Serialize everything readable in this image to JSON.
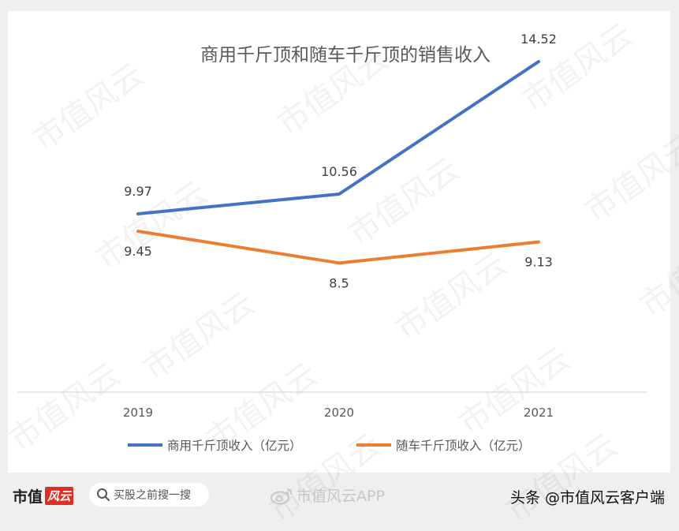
{
  "chart_data": {
    "type": "line",
    "title": "商用千斤顶和随车千斤顶的销售收入",
    "categories": [
      "2019",
      "2020",
      "2021"
    ],
    "series": [
      {
        "name": "商用千斤顶收入（亿元）",
        "values": [
          9.97,
          10.56,
          14.52
        ],
        "labels": [
          "9.97",
          "10.56",
          "14.52"
        ],
        "color": "#4472c4",
        "label_pos": "above"
      },
      {
        "name": "随车千斤顶收入（亿元）",
        "values": [
          9.45,
          8.5,
          9.13
        ],
        "labels": [
          "9.45",
          "8.5",
          "9.13"
        ],
        "color": "#ed7d31",
        "label_pos": "below"
      }
    ],
    "legend": "bottom",
    "grid": false
  },
  "watermark": "市值风云",
  "footer": {
    "brand_text": "市值",
    "brand_logo_text": "风云",
    "search_placeholder": "买股之前搜一搜",
    "weibo_text": "市值风云APP",
    "source_text": "头条 @市值风云客户端"
  }
}
